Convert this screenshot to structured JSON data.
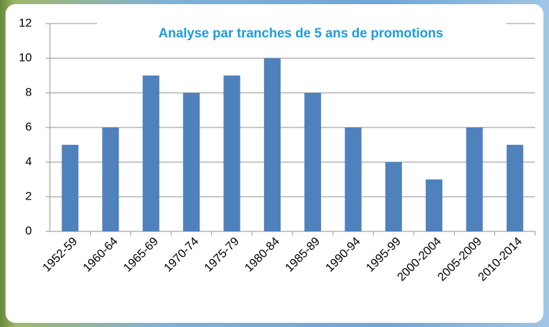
{
  "chart_data": {
    "type": "bar",
    "title": "Analyse par tranches de 5 ans de promotions",
    "categories": [
      "1952-59",
      "1960-64",
      "1965-69",
      "1970-74",
      "1975-79",
      "1980-84",
      "1985-89",
      "1990-94",
      "1995-99",
      "2000-2004",
      "2005-2009",
      "2010-2014"
    ],
    "values": [
      5,
      6,
      9,
      8,
      9,
      10,
      8,
      6,
      4,
      3,
      6,
      5
    ],
    "color": "#4f81bd",
    "ylim": [
      0,
      12
    ],
    "yticks": [
      0,
      2,
      4,
      6,
      8,
      10,
      12
    ],
    "grid": true
  }
}
